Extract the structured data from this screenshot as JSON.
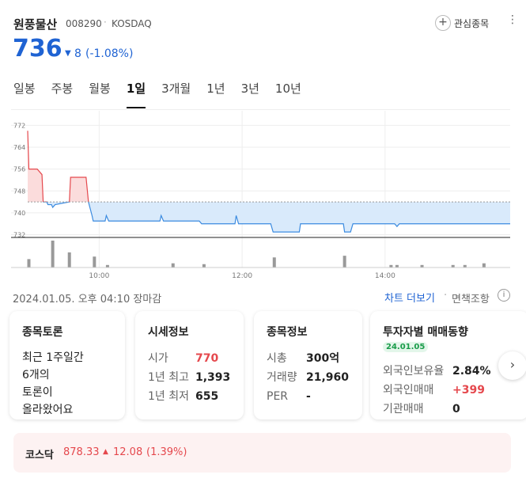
{
  "header": {
    "name": "원풍물산",
    "code": "008290",
    "market": "KOSDAQ",
    "watch": "관심종목"
  },
  "price": {
    "value": "736",
    "change": "8",
    "change_pct": "(-1.08%)"
  },
  "tabs": {
    "items": [
      "일봉",
      "주봉",
      "월봉",
      "1일",
      "3개월",
      "1년",
      "3년",
      "10년"
    ],
    "active": 3
  },
  "chart_data": {
    "type": "line",
    "x": [
      "09:00",
      "09:01",
      "09:08",
      "09:12",
      "09:13",
      "09:16",
      "09:17",
      "09:20",
      "09:21",
      "09:23",
      "09:35",
      "09:36",
      "09:49",
      "09:51",
      "09:54",
      "09:55",
      "10:05",
      "10:06",
      "10:08",
      "10:51",
      "10:52",
      "10:54",
      "11:24",
      "11:26",
      "11:54",
      "11:55",
      "11:57",
      "12:24",
      "12:26",
      "12:48",
      "12:49",
      "13:25",
      "13:26",
      "13:31",
      "13:33",
      "14:08",
      "14:10",
      "14:12",
      "15:45"
    ],
    "values": [
      770,
      756,
      756,
      754,
      744,
      744,
      743,
      743,
      742,
      743,
      744,
      753,
      753,
      744,
      739,
      737,
      737,
      739,
      737,
      737,
      739,
      737,
      737,
      736,
      736,
      739,
      736,
      736,
      733,
      733,
      736,
      736,
      733,
      733,
      736,
      736,
      735,
      736,
      736
    ],
    "baseline": 744,
    "color_up": "#e5484d",
    "color_down": "#3b8be0",
    "ylim": [
      731,
      775
    ],
    "yticks": [
      732,
      740,
      748,
      756,
      764,
      772
    ],
    "xlim": [
      "09:00",
      "15:45"
    ],
    "xticks": [
      "10:00",
      "12:00",
      "14:00"
    ],
    "grid": true,
    "volume": {
      "x": [
        "09:01",
        "09:21",
        "09:35",
        "09:56",
        "10:07",
        "11:02",
        "11:28",
        "12:27",
        "13:26",
        "14:05",
        "14:10",
        "14:31",
        "14:57",
        "15:07",
        "15:23"
      ],
      "values": [
        10,
        32,
        18,
        13,
        3,
        5,
        4,
        12,
        14,
        3,
        3,
        3,
        3,
        3,
        5
      ],
      "color": "#999999"
    }
  },
  "info_bar": {
    "date": "2024.01.05. 오후 04:10 장마감",
    "chart_more": "차트 더보기",
    "disclaimer": "면책조항"
  },
  "cards": [
    {
      "title": "종목토론",
      "lines": [
        "최근 1주일간",
        "6개의",
        "토론이",
        "올라왔어요"
      ]
    },
    {
      "title": "시세정보",
      "rows": [
        [
          "시가",
          "770"
        ],
        [
          "1년 최고",
          "1,393"
        ],
        [
          "1년 최저",
          "655"
        ]
      ]
    },
    {
      "title": "종목정보",
      "rows": [
        [
          "시총",
          "300억"
        ],
        [
          "거래량",
          "21,960"
        ],
        [
          "PER",
          "-"
        ]
      ]
    },
    {
      "title": "투자자별 매매동향",
      "badge": "24.01.05",
      "rows": [
        [
          "외국인보유율",
          "2.84%"
        ],
        [
          "외국인매매",
          "+399"
        ],
        [
          "기관매매",
          "0"
        ]
      ]
    }
  ],
  "index": {
    "name": "코스닥",
    "value": "878.33",
    "change": "12.08",
    "change_pct": "(1.39%)"
  }
}
